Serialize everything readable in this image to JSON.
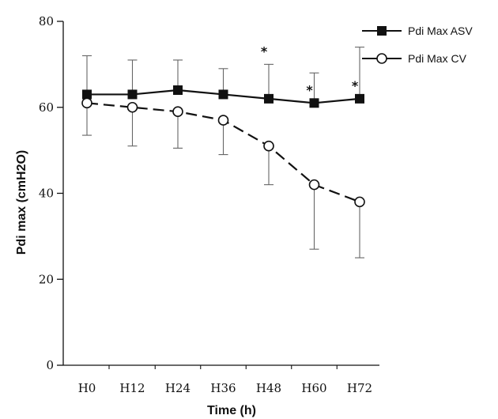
{
  "chart_data": {
    "type": "line",
    "xlabel": "Time (h)",
    "ylabel": "Pdi max (cmH2O)",
    "categories": [
      "H0",
      "H12",
      "H24",
      "H36",
      "H48",
      "H60",
      "H72"
    ],
    "ylim": [
      0,
      80
    ],
    "yticks": [
      "0",
      "20",
      "40",
      "60",
      "80"
    ],
    "grid": false,
    "legend_position": "top-right",
    "series": [
      {
        "name": "Pdi Max ASV",
        "marker": "filled-square",
        "line_style": "solid",
        "values": [
          63,
          63,
          64,
          63,
          62,
          61,
          62
        ],
        "error_upper": [
          72,
          71,
          71,
          69,
          70,
          68,
          74
        ],
        "error_lower": [
          null,
          null,
          null,
          null,
          null,
          null,
          null
        ]
      },
      {
        "name": "Pdi Max CV",
        "marker": "open-circle",
        "line_style": "dashed",
        "values": [
          61,
          60,
          59,
          57,
          51,
          42,
          38
        ],
        "error_upper": [
          null,
          null,
          null,
          null,
          null,
          null,
          null
        ],
        "error_lower": [
          53.5,
          51,
          50.5,
          49,
          42,
          27,
          25
        ]
      }
    ],
    "annotations": [
      {
        "text": "*",
        "category": "H48",
        "value": 73.5
      },
      {
        "text": "*",
        "category": "H60",
        "value": 64.5
      },
      {
        "text": "*",
        "category": "H72",
        "value": 65.5
      }
    ]
  }
}
